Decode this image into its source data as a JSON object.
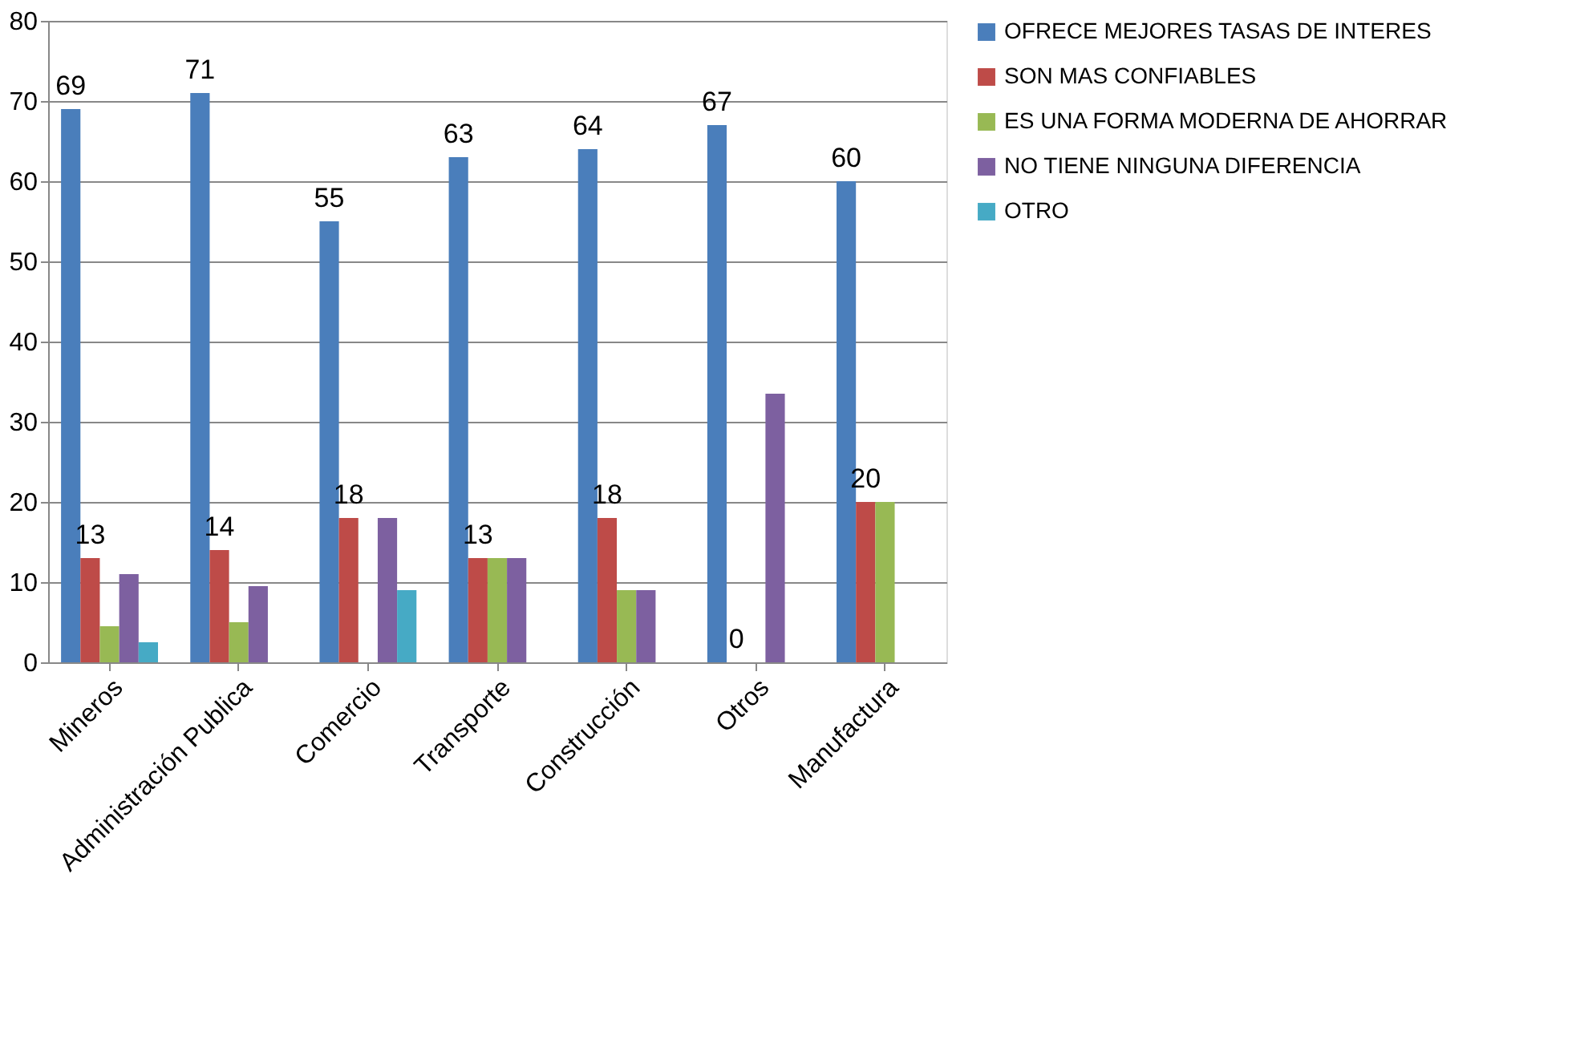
{
  "chart_data": {
    "type": "bar",
    "categories": [
      "Mineros",
      "Administración Publica",
      "Comercio",
      "Transporte",
      "Construcción",
      "Otros",
      "Manufactura"
    ],
    "series": [
      {
        "name": "OFRECE MEJORES TASAS DE INTERES",
        "color": "#4a7ebb",
        "values": [
          69,
          71,
          55,
          63,
          64,
          67,
          60
        ],
        "value_labels": [
          "69",
          "71",
          "55",
          "63",
          "64",
          "67",
          "60"
        ]
      },
      {
        "name": "SON MAS CONFIABLES",
        "color": "#be4b48",
        "values": [
          13,
          14,
          18,
          13,
          18,
          0,
          20
        ],
        "value_labels": [
          "13",
          "14",
          "18",
          "13",
          "18",
          "0",
          "20"
        ]
      },
      {
        "name": "ES UNA FORMA MODERNA DE AHORRAR",
        "color": "#98b954",
        "values": [
          4.5,
          5,
          0,
          13,
          9,
          0,
          20
        ]
      },
      {
        "name": "NO TIENE NINGUNA DIFERENCIA",
        "color": "#7d60a0",
        "values": [
          11,
          9.5,
          18,
          13,
          9,
          33.5,
          0
        ]
      },
      {
        "name": "OTRO",
        "color": "#46aac5",
        "values": [
          2.5,
          0,
          9,
          0,
          0,
          0,
          0
        ]
      }
    ],
    "ylim": [
      0,
      80
    ],
    "yticks": [
      0,
      10,
      20,
      30,
      40,
      50,
      60,
      70,
      80
    ],
    "grid": "y",
    "legend": "right"
  }
}
